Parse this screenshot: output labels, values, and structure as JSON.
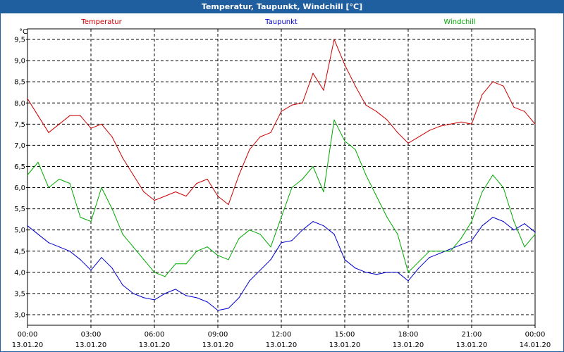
{
  "window": {
    "title": "Temperatur, Taupunkt, Windchill [°C]"
  },
  "chart_data": {
    "type": "line",
    "title": "Temperatur, Taupunkt, Windchill [°C]",
    "ylabel": "°C",
    "ylim": [
      2.75,
      9.75
    ],
    "yticks": [
      "3.0",
      "3.5",
      "4.0",
      "4.5",
      "5.0",
      "5.5",
      "6.0",
      "6.5",
      "7.0",
      "7.5",
      "8.0",
      "8.5",
      "9.0",
      "9.5"
    ],
    "xlim": [
      0,
      24
    ],
    "xticks": [
      {
        "time": "00:00",
        "date": "13.01.20"
      },
      {
        "time": "03:00",
        "date": "13.01.20"
      },
      {
        "time": "06:00",
        "date": "13.01.20"
      },
      {
        "time": "09:00",
        "date": "13.01.20"
      },
      {
        "time": "12:00",
        "date": "13.01.20"
      },
      {
        "time": "15:00",
        "date": "13.01.20"
      },
      {
        "time": "18:00",
        "date": "13.01.20"
      },
      {
        "time": "21:00",
        "date": "13.01.20"
      },
      {
        "time": "00:00",
        "date": "14.01.20"
      }
    ],
    "grid": true,
    "series": [
      {
        "name": "Temperatur",
        "color": "#cc0000",
        "x": [
          0,
          0.5,
          1,
          1.5,
          2,
          2.5,
          3,
          3.5,
          4,
          4.5,
          5,
          5.5,
          6,
          6.5,
          7,
          7.5,
          8,
          8.5,
          9,
          9.5,
          10,
          10.5,
          11,
          11.5,
          12,
          12.5,
          13,
          13.5,
          14,
          14.5,
          15,
          15.5,
          16,
          16.5,
          17,
          17.5,
          18,
          18.5,
          19,
          19.5,
          20,
          20.5,
          21,
          21.5,
          22,
          22.5,
          23,
          23.5,
          24
        ],
        "values": [
          8.1,
          7.7,
          7.3,
          7.5,
          7.7,
          7.7,
          7.4,
          7.5,
          7.2,
          6.7,
          6.3,
          5.9,
          5.7,
          5.8,
          5.9,
          5.8,
          6.1,
          6.2,
          5.8,
          5.6,
          6.3,
          6.9,
          7.2,
          7.3,
          7.8,
          7.95,
          8.0,
          8.7,
          8.3,
          9.5,
          8.9,
          8.4,
          7.95,
          7.8,
          7.6,
          7.3,
          7.05,
          7.2,
          7.35,
          7.45,
          7.5,
          7.55,
          7.5,
          8.2,
          8.5,
          8.4,
          7.9,
          7.8,
          7.5
        ]
      },
      {
        "name": "Taupunkt",
        "color": "#0000cc",
        "x": [
          0,
          0.5,
          1,
          1.5,
          2,
          2.5,
          3,
          3.5,
          4,
          4.5,
          5,
          5.5,
          6,
          6.5,
          7,
          7.5,
          8,
          8.5,
          9,
          9.5,
          10,
          10.5,
          11,
          11.5,
          12,
          12.5,
          13,
          13.5,
          14,
          14.5,
          15,
          15.5,
          16,
          16.5,
          17,
          17.5,
          18,
          18.5,
          19,
          19.5,
          20,
          20.5,
          21,
          21.5,
          22,
          22.5,
          23,
          23.5,
          24
        ],
        "values": [
          5.1,
          4.9,
          4.7,
          4.6,
          4.5,
          4.3,
          4.05,
          4.35,
          4.1,
          3.7,
          3.5,
          3.4,
          3.35,
          3.5,
          3.6,
          3.45,
          3.4,
          3.3,
          3.1,
          3.15,
          3.4,
          3.8,
          4.05,
          4.3,
          4.7,
          4.75,
          5.0,
          5.2,
          5.1,
          4.9,
          4.3,
          4.1,
          4.0,
          3.95,
          4.0,
          4.0,
          3.8,
          4.1,
          4.35,
          4.45,
          4.55,
          4.65,
          4.75,
          5.1,
          5.3,
          5.2,
          5.0,
          5.15,
          4.95
        ]
      },
      {
        "name": "Windchill",
        "color": "#00aa00",
        "x": [
          0,
          0.5,
          1,
          1.5,
          2,
          2.5,
          3,
          3.5,
          4,
          4.5,
          5,
          5.5,
          6,
          6.5,
          7,
          7.5,
          8,
          8.5,
          9,
          9.5,
          10,
          10.5,
          11,
          11.5,
          12,
          12.5,
          13,
          13.5,
          14,
          14.5,
          15,
          15.5,
          16,
          16.5,
          17,
          17.5,
          18,
          18.5,
          19,
          19.5,
          20,
          20.5,
          21,
          21.5,
          22,
          22.5,
          23,
          23.5,
          24
        ],
        "values": [
          6.3,
          6.6,
          6.0,
          6.2,
          6.1,
          5.3,
          5.2,
          6.0,
          5.5,
          4.9,
          4.6,
          4.3,
          4.0,
          3.9,
          4.2,
          4.2,
          4.5,
          4.6,
          4.4,
          4.3,
          4.8,
          5.0,
          4.9,
          4.6,
          5.3,
          6.0,
          6.2,
          6.5,
          5.9,
          7.6,
          7.1,
          6.9,
          6.3,
          5.8,
          5.3,
          4.9,
          4.0,
          4.25,
          4.5,
          4.5,
          4.5,
          4.8,
          5.2,
          5.9,
          6.3,
          6.0,
          5.2,
          4.6,
          4.9
        ]
      }
    ]
  }
}
